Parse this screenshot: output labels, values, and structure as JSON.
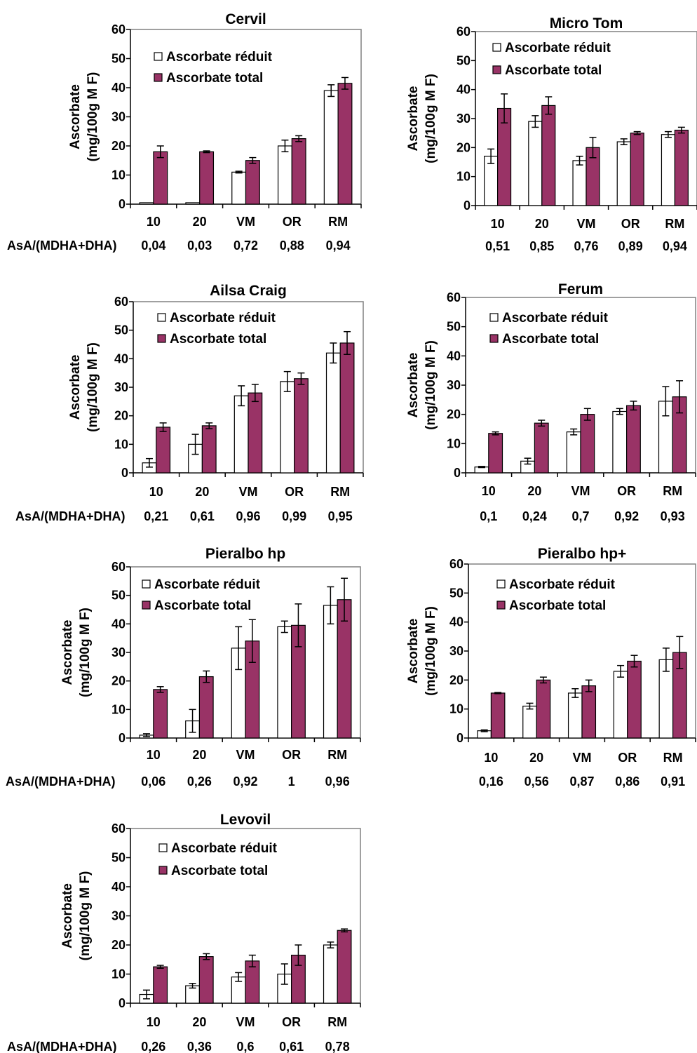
{
  "figure": {
    "ratio_label": "AsA/(MDHA+DHA)",
    "ylabel_line1": "Ascorbate",
    "ylabel_line2": "(mg/100g M F)",
    "reduced_color": "#ffffff",
    "total_color": "#993366"
  },
  "chart_data": [
    {
      "type": "bar",
      "title": "Cervil",
      "categories": [
        "10",
        "20",
        "VM",
        "OR",
        "RM"
      ],
      "ylim": [
        0,
        60
      ],
      "yticks": [
        0,
        10,
        20,
        30,
        40,
        50,
        60
      ],
      "legend": "top-left",
      "grid": false,
      "show_ratio_label": true,
      "series": [
        {
          "name": "Ascorbate réduit",
          "values": [
            0.5,
            0.5,
            11,
            20,
            39
          ],
          "errors": [
            0,
            0,
            0.3,
            2,
            2
          ]
        },
        {
          "name": "Ascorbate total",
          "values": [
            18,
            18,
            15,
            22.5,
            41.5
          ],
          "errors": [
            2,
            0.3,
            1,
            1,
            2
          ]
        }
      ],
      "ratios": [
        "0,04",
        "0,03",
        "0,72",
        "0,88",
        "0,94"
      ]
    },
    {
      "type": "bar",
      "title": "Micro Tom",
      "categories": [
        "10",
        "20",
        "VM",
        "OR",
        "RM"
      ],
      "ylim": [
        0,
        60
      ],
      "yticks": [
        0,
        10,
        20,
        30,
        40,
        50,
        60
      ],
      "legend": "top-left",
      "grid": false,
      "show_ratio_label": false,
      "series": [
        {
          "name": "Ascorbate réduit",
          "values": [
            17,
            29,
            15.5,
            22,
            24.5
          ],
          "errors": [
            2.5,
            2,
            1.5,
            1,
            1
          ]
        },
        {
          "name": "Ascorbate total",
          "values": [
            33.5,
            34.5,
            20,
            25,
            26
          ],
          "errors": [
            5,
            3,
            3.5,
            0.5,
            1
          ]
        }
      ],
      "ratios": [
        "0,51",
        "0,85",
        "0,76",
        "0,89",
        "0,94"
      ]
    },
    {
      "type": "bar",
      "title": "Ailsa Craig",
      "categories": [
        "10",
        "20",
        "VM",
        "OR",
        "RM"
      ],
      "ylim": [
        0,
        60
      ],
      "yticks": [
        0,
        10,
        20,
        30,
        40,
        50,
        60
      ],
      "legend": "top-left",
      "grid": false,
      "show_ratio_label": true,
      "series": [
        {
          "name": "Ascorbate réduit",
          "values": [
            3.5,
            10,
            27,
            32,
            42
          ],
          "errors": [
            1.5,
            3.5,
            3.5,
            3.5,
            3.5
          ]
        },
        {
          "name": "Ascorbate total",
          "values": [
            16,
            16.5,
            28,
            33,
            45.5
          ],
          "errors": [
            1.5,
            1,
            3,
            2,
            4
          ]
        }
      ],
      "ratios": [
        "0,21",
        "0,61",
        "0,96",
        "0,99",
        "0,95"
      ]
    },
    {
      "type": "bar",
      "title": "Ferum",
      "categories": [
        "10",
        "20",
        "VM",
        "OR",
        "RM"
      ],
      "ylim": [
        0,
        60
      ],
      "yticks": [
        0,
        10,
        20,
        30,
        40,
        50,
        60
      ],
      "legend": "top-left",
      "grid": false,
      "show_ratio_label": false,
      "series": [
        {
          "name": "Ascorbate réduit",
          "values": [
            2,
            4,
            14,
            21,
            24.5
          ],
          "errors": [
            0.2,
            1,
            1,
            1,
            5
          ]
        },
        {
          "name": "Ascorbate total",
          "values": [
            13.5,
            17,
            20,
            23,
            26
          ],
          "errors": [
            0.5,
            1,
            2,
            1.5,
            5.5
          ]
        }
      ],
      "ratios": [
        "0,1",
        "0,24",
        "0,7",
        "0,92",
        "0,93"
      ]
    },
    {
      "type": "bar",
      "title": "Pieralbo hp",
      "categories": [
        "10",
        "20",
        "VM",
        "OR",
        "RM"
      ],
      "ylim": [
        0,
        60
      ],
      "yticks": [
        0,
        10,
        20,
        30,
        40,
        50,
        60
      ],
      "legend": "top-left",
      "grid": false,
      "show_ratio_label": true,
      "series": [
        {
          "name": "Ascorbate réduit",
          "values": [
            1,
            6,
            31.5,
            39,
            46.5
          ],
          "errors": [
            0.5,
            4,
            7.5,
            2,
            6.5
          ]
        },
        {
          "name": "Ascorbate total",
          "values": [
            17,
            21.5,
            34,
            39.5,
            48.5
          ],
          "errors": [
            1,
            2,
            7.5,
            7.5,
            7.5
          ]
        }
      ],
      "ratios": [
        "0,06",
        "0,26",
        "0,92",
        "1",
        "0,96"
      ]
    },
    {
      "type": "bar",
      "title": "Pieralbo hp+",
      "categories": [
        "10",
        "20",
        "VM",
        "OR",
        "RM"
      ],
      "ylim": [
        0,
        60
      ],
      "yticks": [
        0,
        10,
        20,
        30,
        40,
        50,
        60
      ],
      "legend": "top-left",
      "grid": false,
      "show_ratio_label": false,
      "series": [
        {
          "name": "Ascorbate réduit",
          "values": [
            2.5,
            11,
            15.5,
            23,
            27
          ],
          "errors": [
            0.3,
            1,
            1.5,
            2,
            4
          ]
        },
        {
          "name": "Ascorbate total",
          "values": [
            15.5,
            20,
            18,
            26.5,
            29.5
          ],
          "errors": [
            0.2,
            1,
            2,
            2,
            5.5
          ]
        }
      ],
      "ratios": [
        "0,16",
        "0,56",
        "0,87",
        "0,86",
        "0,91"
      ]
    },
    {
      "type": "bar",
      "title": "Levovil",
      "categories": [
        "10",
        "20",
        "VM",
        "OR",
        "RM"
      ],
      "ylim": [
        0,
        60
      ],
      "yticks": [
        0,
        10,
        20,
        30,
        40,
        50,
        60
      ],
      "legend": "top-left",
      "grid": false,
      "show_ratio_label": true,
      "series": [
        {
          "name": "Ascorbate réduit",
          "values": [
            3,
            6,
            9,
            10,
            20
          ],
          "errors": [
            1.5,
            0.8,
            1.5,
            3.5,
            1
          ]
        },
        {
          "name": "Ascorbate total",
          "values": [
            12.5,
            16,
            14.5,
            16.5,
            25
          ],
          "errors": [
            0.5,
            1,
            2,
            3.5,
            0.5
          ]
        }
      ],
      "ratios": [
        "0,26",
        "0,36",
        "0,6",
        "0,61",
        "0,78"
      ]
    }
  ]
}
